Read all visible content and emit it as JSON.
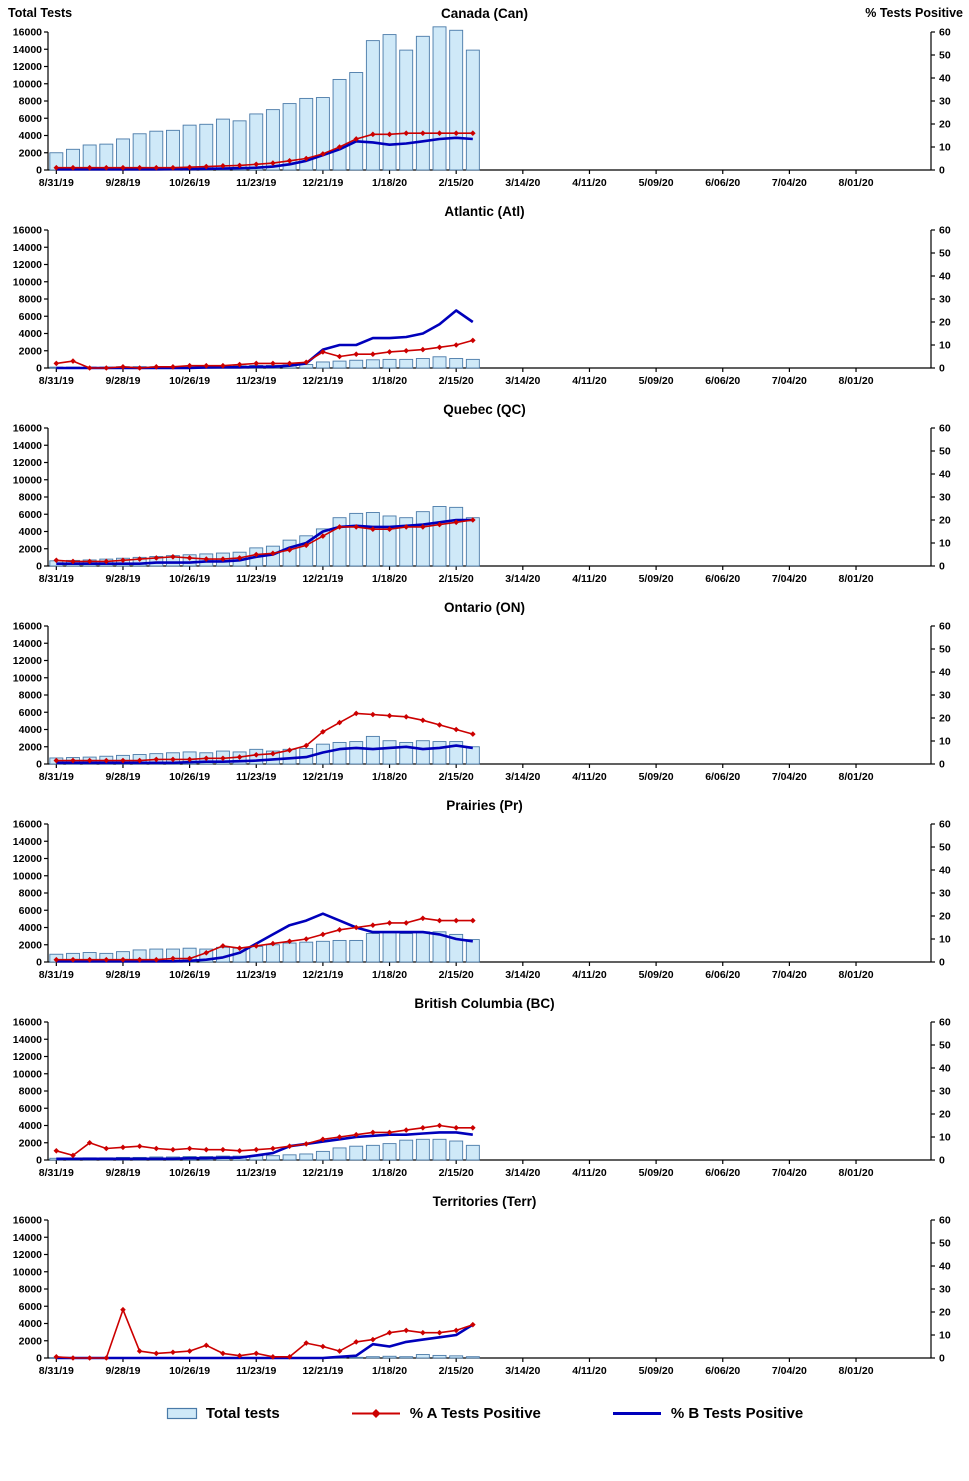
{
  "page": {
    "left_axis_title": "Total Tests",
    "right_axis_title": "% Tests Positive"
  },
  "legend": {
    "total_tests": "Total tests",
    "a_positive": "% A Tests Positive",
    "b_positive": "% B Tests Positive"
  },
  "colors": {
    "bar_fill": "#cfe9f8",
    "bar_border": "#4a7aa8",
    "series_a": "#cc0000",
    "series_b": "#0000bb",
    "axis": "#000000"
  },
  "axes": {
    "left_axis_label": "Total Tests",
    "right_axis_label": "% Tests Positive",
    "left_ticks": [
      0,
      2000,
      4000,
      6000,
      8000,
      10000,
      12000,
      14000,
      16000
    ],
    "right_ticks": [
      0,
      10,
      20,
      30,
      40,
      50,
      60
    ],
    "left_max": 16000,
    "right_max": 60,
    "x_slots": 53,
    "x_tick_labels": [
      "8/31/19",
      "9/28/19",
      "10/26/19",
      "11/23/19",
      "12/21/19",
      "1/18/20",
      "2/15/20",
      "3/14/20",
      "4/11/20",
      "5/09/20",
      "6/06/20",
      "7/04/20",
      "8/01/20"
    ],
    "x_tick_label_every_n_weeks": 4
  },
  "chart_data": [
    {
      "type": "bar",
      "subtype": "combo-bar-lines",
      "title": "Canada (Can)",
      "ylabel_left": "Total Tests",
      "ylabel_right": "% Tests Positive",
      "ylim_left": [
        0,
        16000
      ],
      "ylim_right": [
        0,
        60
      ],
      "legend_position": "bottom",
      "grid": false,
      "categories": [
        "8/31/19",
        "9/07/19",
        "9/14/19",
        "9/21/19",
        "9/28/19",
        "10/05/19",
        "10/12/19",
        "10/19/19",
        "10/26/19",
        "11/02/19",
        "11/09/19",
        "11/16/19",
        "11/23/19",
        "11/30/19",
        "12/07/19",
        "12/14/19",
        "12/21/19",
        "12/28/19",
        "1/04/20",
        "1/11/20",
        "1/18/20",
        "1/25/20",
        "2/01/20",
        "2/08/20",
        "2/15/20",
        "2/22/20"
      ],
      "series": [
        {
          "name": "Total tests",
          "axis": "left",
          "style": "bar",
          "values": [
            2000,
            2400,
            2900,
            3000,
            3600,
            4200,
            4500,
            4600,
            5200,
            5300,
            5900,
            5700,
            6500,
            7000,
            7700,
            8300,
            8400,
            10500,
            11300,
            15000,
            15700,
            13900,
            15500,
            16600,
            16200,
            13900
          ]
        },
        {
          "name": "% A Tests Positive",
          "axis": "right",
          "style": "line-diamond",
          "values": [
            1,
            1,
            1,
            1,
            1,
            1,
            1,
            1,
            1.2,
            1.5,
            1.8,
            2,
            2.5,
            3,
            4,
            5,
            7,
            10,
            13.5,
            15.5,
            15.5,
            16,
            16,
            16,
            16,
            16
          ]
        },
        {
          "name": "% B Tests Positive",
          "axis": "right",
          "style": "line",
          "values": [
            0.3,
            0.3,
            0.3,
            0.3,
            0.3,
            0.3,
            0.3,
            0.4,
            0.4,
            0.5,
            0.6,
            0.8,
            1,
            1.5,
            2.5,
            4,
            6.5,
            9,
            12.5,
            12,
            11,
            11.5,
            12.5,
            13.5,
            14,
            13.5
          ]
        }
      ]
    },
    {
      "type": "bar",
      "subtype": "combo-bar-lines",
      "title": "Atlantic (Atl)",
      "ylim_left": [
        0,
        16000
      ],
      "ylim_right": [
        0,
        60
      ],
      "grid": false,
      "categories": [
        "8/31/19",
        "9/07/19",
        "9/14/19",
        "9/21/19",
        "9/28/19",
        "10/05/19",
        "10/12/19",
        "10/19/19",
        "10/26/19",
        "11/02/19",
        "11/09/19",
        "11/16/19",
        "11/23/19",
        "11/30/19",
        "12/07/19",
        "12/14/19",
        "12/21/19",
        "12/28/19",
        "1/04/20",
        "1/11/20",
        "1/18/20",
        "1/25/20",
        "2/01/20",
        "2/08/20",
        "2/15/20",
        "2/22/20"
      ],
      "series": [
        {
          "name": "Total tests",
          "axis": "left",
          "style": "bar",
          "values": [
            100,
            100,
            100,
            100,
            150,
            150,
            150,
            150,
            200,
            200,
            250,
            250,
            300,
            300,
            350,
            400,
            700,
            800,
            900,
            950,
            1000,
            1000,
            1100,
            1300,
            1100,
            1000
          ]
        },
        {
          "name": "% A Tests Positive",
          "axis": "right",
          "style": "line-diamond",
          "values": [
            2,
            3,
            0,
            0,
            0.5,
            0,
            0.5,
            0.5,
            1,
            1,
            1,
            1.5,
            2,
            2,
            2,
            2.5,
            7,
            5,
            6,
            6,
            7,
            7.5,
            8,
            9,
            10,
            12
          ]
        },
        {
          "name": "% B Tests Positive",
          "axis": "right",
          "style": "line",
          "values": [
            0,
            0,
            0,
            0,
            0,
            0,
            0,
            0,
            0,
            0.2,
            0.3,
            0.3,
            0.5,
            0.5,
            1,
            2,
            8,
            10,
            10,
            13,
            13,
            13.5,
            15,
            19,
            25,
            20
          ]
        }
      ]
    },
    {
      "type": "bar",
      "subtype": "combo-bar-lines",
      "title": "Quebec (QC)",
      "ylim_left": [
        0,
        16000
      ],
      "ylim_right": [
        0,
        60
      ],
      "grid": false,
      "categories": [
        "8/31/19",
        "9/07/19",
        "9/14/19",
        "9/21/19",
        "9/28/19",
        "10/05/19",
        "10/12/19",
        "10/19/19",
        "10/26/19",
        "11/02/19",
        "11/09/19",
        "11/16/19",
        "11/23/19",
        "11/30/19",
        "12/07/19",
        "12/14/19",
        "12/21/19",
        "12/28/19",
        "1/04/20",
        "1/11/20",
        "1/18/20",
        "1/25/20",
        "2/01/20",
        "2/08/20",
        "2/15/20",
        "2/22/20"
      ],
      "series": [
        {
          "name": "Total tests",
          "axis": "left",
          "style": "bar",
          "values": [
            600,
            650,
            700,
            800,
            900,
            1000,
            1100,
            1200,
            1300,
            1400,
            1500,
            1600,
            2100,
            2300,
            3000,
            3500,
            4300,
            5600,
            6100,
            6200,
            5800,
            5600,
            6300,
            6900,
            6800,
            5600
          ]
        },
        {
          "name": "% A Tests Positive",
          "axis": "right",
          "style": "line-diamond",
          "values": [
            2.5,
            2,
            2,
            2,
            2.5,
            3,
            3.5,
            4,
            3.5,
            3,
            3,
            3.5,
            5,
            5.5,
            7,
            9,
            13,
            17,
            17,
            16,
            16,
            17,
            17,
            18,
            19,
            20
          ]
        },
        {
          "name": "% B Tests Positive",
          "axis": "right",
          "style": "line",
          "values": [
            1,
            1,
            1,
            1,
            1,
            1,
            1.5,
            1.5,
            1.5,
            2,
            2,
            2.5,
            4,
            5,
            8,
            10,
            15,
            17,
            17.5,
            17,
            17,
            17.5,
            18,
            19,
            20,
            20
          ]
        }
      ]
    },
    {
      "type": "bar",
      "subtype": "combo-bar-lines",
      "title": "Ontario (ON)",
      "ylim_left": [
        0,
        16000
      ],
      "ylim_right": [
        0,
        60
      ],
      "grid": false,
      "categories": [
        "8/31/19",
        "9/07/19",
        "9/14/19",
        "9/21/19",
        "9/28/19",
        "10/05/19",
        "10/12/19",
        "10/19/19",
        "10/26/19",
        "11/02/19",
        "11/09/19",
        "11/16/19",
        "11/23/19",
        "11/30/19",
        "12/07/19",
        "12/14/19",
        "12/21/19",
        "12/28/19",
        "1/04/20",
        "1/11/20",
        "1/18/20",
        "1/25/20",
        "2/01/20",
        "2/08/20",
        "2/15/20",
        "2/22/20"
      ],
      "series": [
        {
          "name": "Total tests",
          "axis": "left",
          "style": "bar",
          "values": [
            700,
            750,
            800,
            900,
            1000,
            1100,
            1200,
            1300,
            1400,
            1300,
            1500,
            1400,
            1700,
            1500,
            1700,
            1800,
            2300,
            2500,
            2600,
            3200,
            2700,
            2500,
            2700,
            2600,
            2600,
            2000
          ]
        },
        {
          "name": "% A Tests Positive",
          "axis": "right",
          "style": "line-diamond",
          "values": [
            1.5,
            1.5,
            1.5,
            1.5,
            1.5,
            1.5,
            2,
            2,
            2,
            2.5,
            2.5,
            3,
            4,
            4.5,
            6,
            8,
            14,
            18,
            22,
            21.5,
            21,
            20.5,
            19,
            17,
            15,
            13
          ]
        },
        {
          "name": "% B Tests Positive",
          "axis": "right",
          "style": "line",
          "values": [
            0.5,
            0.5,
            0.5,
            0.5,
            0.5,
            0.5,
            0.5,
            0.5,
            0.8,
            1,
            1,
            1.2,
            1.5,
            2,
            2.5,
            3,
            5,
            6.5,
            7,
            6.5,
            7,
            7.5,
            6.5,
            7,
            8,
            7
          ]
        }
      ]
    },
    {
      "type": "bar",
      "subtype": "combo-bar-lines",
      "title": "Prairies (Pr)",
      "ylim_left": [
        0,
        16000
      ],
      "ylim_right": [
        0,
        60
      ],
      "grid": false,
      "categories": [
        "8/31/19",
        "9/07/19",
        "9/14/19",
        "9/21/19",
        "9/28/19",
        "10/05/19",
        "10/12/19",
        "10/19/19",
        "10/26/19",
        "11/02/19",
        "11/09/19",
        "11/16/19",
        "11/23/19",
        "11/30/19",
        "12/07/19",
        "12/14/19",
        "12/21/19",
        "12/28/19",
        "1/04/20",
        "1/11/20",
        "1/18/20",
        "1/25/20",
        "2/01/20",
        "2/08/20",
        "2/15/20",
        "2/22/20"
      ],
      "series": [
        {
          "name": "Total tests",
          "axis": "left",
          "style": "bar",
          "values": [
            900,
            1000,
            1100,
            1000,
            1200,
            1400,
            1500,
            1500,
            1600,
            1500,
            1700,
            1600,
            1800,
            2000,
            2200,
            2300,
            2400,
            2500,
            2500,
            3300,
            3400,
            3300,
            3500,
            3500,
            3200,
            2600
          ]
        },
        {
          "name": "% A Tests Positive",
          "axis": "right",
          "style": "line-diamond",
          "values": [
            1,
            1,
            1,
            1,
            1,
            1,
            1,
            1.5,
            1.5,
            4,
            7,
            6,
            7,
            8,
            9,
            10,
            12,
            14,
            15,
            16,
            17,
            17,
            19,
            18,
            18,
            18
          ]
        },
        {
          "name": "% B Tests Positive",
          "axis": "right",
          "style": "line",
          "values": [
            0.3,
            0.3,
            0.3,
            0.3,
            0.3,
            0.3,
            0.3,
            0.3,
            0.5,
            1,
            2,
            4,
            8,
            12,
            16,
            18,
            21,
            18,
            15,
            13,
            13,
            13,
            13,
            12,
            10,
            9
          ]
        }
      ]
    },
    {
      "type": "bar",
      "subtype": "combo-bar-lines",
      "title": "British Columbia (BC)",
      "ylim_left": [
        0,
        16000
      ],
      "ylim_right": [
        0,
        60
      ],
      "grid": false,
      "categories": [
        "8/31/19",
        "9/07/19",
        "9/14/19",
        "9/21/19",
        "9/28/19",
        "10/05/19",
        "10/12/19",
        "10/19/19",
        "10/26/19",
        "11/02/19",
        "11/09/19",
        "11/16/19",
        "11/23/19",
        "11/30/19",
        "12/07/19",
        "12/14/19",
        "12/21/19",
        "12/28/19",
        "1/04/20",
        "1/11/20",
        "1/18/20",
        "1/25/20",
        "2/01/20",
        "2/08/20",
        "2/15/20",
        "2/22/20"
      ],
      "series": [
        {
          "name": "Total tests",
          "axis": "left",
          "style": "bar",
          "values": [
            200,
            200,
            250,
            250,
            300,
            300,
            350,
            350,
            400,
            400,
            450,
            450,
            500,
            500,
            600,
            700,
            1000,
            1400,
            1600,
            1700,
            1900,
            2300,
            2400,
            2400,
            2200,
            1700
          ]
        },
        {
          "name": "% A Tests Positive",
          "axis": "right",
          "style": "line-diamond",
          "values": [
            4,
            2,
            7.5,
            5,
            5.5,
            6,
            5,
            4.5,
            5,
            4.5,
            4.5,
            4,
            4.5,
            5,
            6,
            7,
            9,
            10,
            11,
            12,
            12,
            13,
            14,
            15,
            14,
            14
          ]
        },
        {
          "name": "% B Tests Positive",
          "axis": "right",
          "style": "line",
          "values": [
            0.5,
            0.5,
            0.5,
            0.5,
            0.5,
            0.5,
            0.5,
            0.5,
            0.8,
            0.8,
            1,
            1,
            2,
            3,
            6,
            7,
            8,
            9,
            10,
            10.5,
            11,
            11,
            11.5,
            12,
            12,
            11
          ]
        }
      ]
    },
    {
      "type": "bar",
      "subtype": "combo-bar-lines",
      "title": "Territories (Terr)",
      "ylim_left": [
        0,
        16000
      ],
      "ylim_right": [
        0,
        60
      ],
      "grid": false,
      "categories": [
        "8/31/19",
        "9/07/19",
        "9/14/19",
        "9/21/19",
        "9/28/19",
        "10/05/19",
        "10/12/19",
        "10/19/19",
        "10/26/19",
        "11/02/19",
        "11/09/19",
        "11/16/19",
        "11/23/19",
        "11/30/19",
        "12/07/19",
        "12/14/19",
        "12/21/19",
        "12/28/19",
        "1/04/20",
        "1/11/20",
        "1/18/20",
        "1/25/20",
        "2/01/20",
        "2/08/20",
        "2/15/20",
        "2/22/20"
      ],
      "series": [
        {
          "name": "Total tests",
          "axis": "left",
          "style": "bar",
          "values": [
            30,
            30,
            30,
            30,
            40,
            30,
            30,
            30,
            40,
            40,
            40,
            40,
            40,
            40,
            50,
            50,
            60,
            60,
            80,
            150,
            200,
            150,
            400,
            300,
            250,
            150
          ]
        },
        {
          "name": "% A Tests Positive",
          "axis": "right",
          "style": "line-diamond",
          "values": [
            0.5,
            0,
            0,
            0,
            21,
            3,
            2,
            2.5,
            3,
            5.5,
            2,
            1,
            2,
            0.5,
            0.5,
            6.5,
            5,
            3,
            7,
            8,
            11,
            12,
            11,
            11,
            12,
            14.5
          ]
        },
        {
          "name": "% B Tests Positive",
          "axis": "right",
          "style": "line",
          "values": [
            0,
            0,
            0,
            0,
            0,
            0,
            0,
            0,
            0,
            0,
            0,
            0,
            0,
            0,
            0,
            0,
            0,
            0.5,
            1,
            6,
            5,
            7,
            8,
            9,
            10,
            14.5
          ]
        }
      ]
    }
  ]
}
